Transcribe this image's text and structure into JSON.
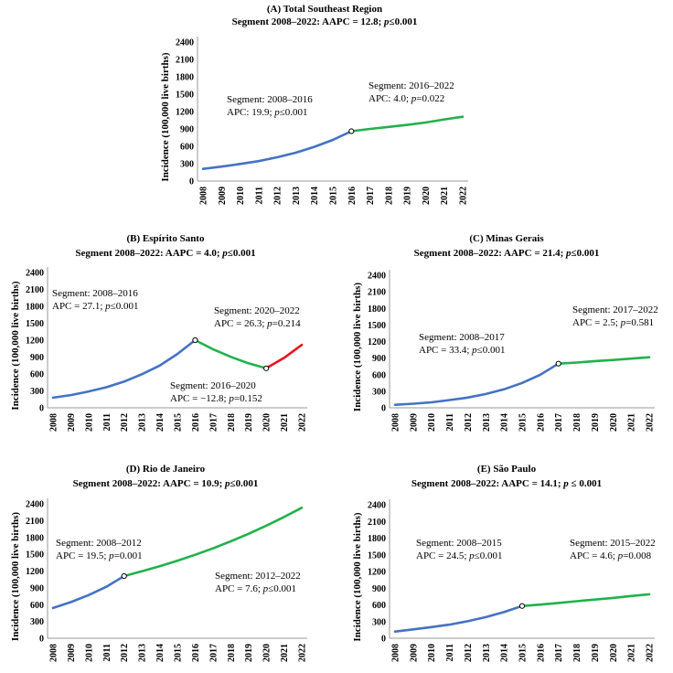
{
  "chart_data": [
    {
      "type": "line",
      "title": "(A) Total Southeast Region",
      "subtitle": "Segment 2008–2022: AAPC = 12.8; p≤0.001",
      "subtitle_parts": [
        "Segment 2008–2022: AAPC = 12.8; ",
        "p",
        "≤0.001"
      ],
      "ylabel": "Incidence (100,000 live births)",
      "ylim": [
        0,
        2400
      ],
      "yticks": [
        "0",
        "300",
        "600",
        "900",
        "1200",
        "1500",
        "1800",
        "2100",
        "2400"
      ],
      "x": [
        "2008",
        "2009",
        "2010",
        "2011",
        "2012",
        "2013",
        "2014",
        "2015",
        "2016",
        "2017",
        "2018",
        "2019",
        "2020",
        "2021",
        "2022"
      ],
      "series": [
        {
          "name": "2008–2016",
          "color": "#4472C4",
          "x": [
            2008,
            2009,
            2010,
            2011,
            2012,
            2013,
            2014,
            2015,
            2016
          ],
          "values": [
            210,
            250,
            295,
            345,
            410,
            490,
            590,
            710,
            860
          ]
        },
        {
          "name": "2016–2022",
          "color": "#22B14C",
          "x": [
            2016,
            2017,
            2018,
            2019,
            2020,
            2021,
            2022
          ],
          "values": [
            860,
            900,
            935,
            970,
            1010,
            1065,
            1110
          ]
        }
      ],
      "joinpoints": [
        {
          "x": 2016,
          "y": 860
        }
      ],
      "annotations": [
        {
          "line1": "Segment: 2008–2016",
          "line2_parts": [
            "APC: 19.9; ",
            "p",
            "≤0.001"
          ]
        },
        {
          "line1": "Segment: 2016–2022",
          "line2_parts": [
            "APC: 4.0; ",
            "p",
            "=0.022"
          ]
        }
      ]
    },
    {
      "type": "line",
      "title": "(B) Espírito Santo",
      "subtitle": "Segment 2008–2022: AAPC = 4.0; p≤0.001",
      "subtitle_parts": [
        "Segment 2008–2022: AAPC = 4.0; ",
        "p",
        "≤0.001"
      ],
      "ylabel": "Incidence (100,000 live births)",
      "ylim": [
        0,
        2400
      ],
      "yticks": [
        "0",
        "300",
        "600",
        "900",
        "1200",
        "1500",
        "1800",
        "2100",
        "2400"
      ],
      "x": [
        "2008",
        "2009",
        "2010",
        "2011",
        "2012",
        "2013",
        "2014",
        "2015",
        "2016",
        "2017",
        "2018",
        "2019",
        "2020",
        "2021",
        "2022"
      ],
      "series": [
        {
          "name": "2008–2016",
          "color": "#4472C4",
          "x": [
            2008,
            2009,
            2010,
            2011,
            2012,
            2013,
            2014,
            2015,
            2016
          ],
          "values": [
            180,
            225,
            290,
            365,
            465,
            595,
            750,
            955,
            1200
          ]
        },
        {
          "name": "2016–2020",
          "color": "#22B14C",
          "x": [
            2016,
            2017,
            2018,
            2019,
            2020
          ],
          "values": [
            1200,
            1040,
            905,
            790,
            700
          ]
        },
        {
          "name": "2020–2022",
          "color": "#E8141C",
          "x": [
            2020,
            2021,
            2022
          ],
          "values": [
            700,
            885,
            1115
          ]
        }
      ],
      "joinpoints": [
        {
          "x": 2016,
          "y": 1200
        },
        {
          "x": 2020,
          "y": 700
        }
      ],
      "annotations": [
        {
          "line1": "Segment: 2008–2016",
          "line2_parts": [
            "APC = 27.1; ",
            "p",
            "≤0.001"
          ]
        },
        {
          "line1": "Segment: 2020–2022",
          "line2_parts": [
            "APC = 26.3; ",
            "p",
            "=0.214"
          ]
        },
        {
          "line1": "Segment: 2016–2020",
          "line2_parts": [
            "APC = −12.8; ",
            "p",
            "=0.152"
          ]
        }
      ]
    },
    {
      "type": "line",
      "title": "(C) Minas Gerais",
      "subtitle": "Segment 2008–2022: AAPC = 21.4; p≤0.001",
      "subtitle_parts": [
        "Segment 2008–2022: AAPC = 21.4; ",
        "p",
        "≤0.001"
      ],
      "ylabel": "Incidence (100,000 live births)",
      "ylim": [
        0,
        2400
      ],
      "yticks": [
        "0",
        "300",
        "600",
        "900",
        "1200",
        "1500",
        "1800",
        "2100",
        "2400"
      ],
      "x": [
        "2008",
        "2009",
        "2010",
        "2011",
        "2012",
        "2013",
        "2014",
        "2015",
        "2016",
        "2017",
        "2018",
        "2019",
        "2020",
        "2021",
        "2022"
      ],
      "series": [
        {
          "name": "2008–2017",
          "color": "#4472C4",
          "x": [
            2008,
            2009,
            2010,
            2011,
            2012,
            2013,
            2014,
            2015,
            2016,
            2017
          ],
          "values": [
            55,
            75,
            100,
            140,
            185,
            250,
            335,
            450,
            600,
            800
          ]
        },
        {
          "name": "2017–2022",
          "color": "#22B14C",
          "x": [
            2017,
            2018,
            2019,
            2020,
            2021,
            2022
          ],
          "values": [
            800,
            820,
            845,
            865,
            890,
            915
          ]
        }
      ],
      "joinpoints": [
        {
          "x": 2017,
          "y": 800
        }
      ],
      "annotations": [
        {
          "line1": "Segment: 2017–2022",
          "line2_parts": [
            "APC = 2.5; ",
            "p",
            "=0.581"
          ]
        },
        {
          "line1": "Segment: 2008–2017",
          "line2_parts": [
            "APC = 33.4; ",
            "p",
            "≤0.001"
          ]
        }
      ]
    },
    {
      "type": "line",
      "title": "(D) Rio de Janeiro",
      "subtitle": "Segment 2008–2022: AAPC = 10.9; p≤0.001",
      "subtitle_parts": [
        "Segment 2008–2022: AAPC = 10.9; ",
        "p",
        "≤0.001"
      ],
      "ylabel": "Incidence (100,000 live births)",
      "ylim": [
        0,
        2400
      ],
      "yticks": [
        "0",
        "300",
        "600",
        "900",
        "1200",
        "1500",
        "1800",
        "2100",
        "2400"
      ],
      "x": [
        "2008",
        "2009",
        "2010",
        "2011",
        "2012",
        "2013",
        "2014",
        "2015",
        "2016",
        "2017",
        "2018",
        "2019",
        "2020",
        "2021",
        "2022"
      ],
      "series": [
        {
          "name": "2008–2012",
          "color": "#4472C4",
          "x": [
            2008,
            2009,
            2010,
            2011,
            2012
          ],
          "values": [
            540,
            645,
            770,
            920,
            1110
          ]
        },
        {
          "name": "2012–2022",
          "color": "#22B14C",
          "x": [
            2012,
            2013,
            2014,
            2015,
            2016,
            2017,
            2018,
            2019,
            2020,
            2021,
            2022
          ],
          "values": [
            1110,
            1195,
            1285,
            1385,
            1490,
            1605,
            1730,
            1865,
            2010,
            2165,
            2330
          ]
        }
      ],
      "joinpoints": [
        {
          "x": 2012,
          "y": 1110
        }
      ],
      "annotations": [
        {
          "line1": "Segment: 2008–2012",
          "line2_parts": [
            "APC = 19.5; ",
            "p",
            "=0.001"
          ]
        },
        {
          "line1": "Segment: 2012–2022",
          "line2_parts": [
            "APC = 7.6; ",
            "p",
            "≤0.001"
          ]
        }
      ]
    },
    {
      "type": "line",
      "title": "(E) São Paulo",
      "subtitle": "Segment 2008–2022: AAPC = 14.1; p ≤ 0.001",
      "subtitle_parts": [
        "Segment 2008–2022: AAPC = 14.1; ",
        "p",
        " ≤ 0.001"
      ],
      "ylabel": "Incidence (100,000 live births)",
      "ylim": [
        0,
        2400
      ],
      "yticks": [
        "0",
        "300",
        "600",
        "900",
        "1200",
        "1500",
        "1800",
        "2100",
        "2400"
      ],
      "x": [
        "2008",
        "2009",
        "2010",
        "2011",
        "2012",
        "2013",
        "2014",
        "2015",
        "2016",
        "2017",
        "2018",
        "2019",
        "2020",
        "2021",
        "2022"
      ],
      "series": [
        {
          "name": "2008–2015",
          "color": "#4472C4",
          "x": [
            2008,
            2009,
            2010,
            2011,
            2012,
            2013,
            2014,
            2015
          ],
          "values": [
            120,
            160,
            200,
            245,
            305,
            380,
            470,
            580
          ]
        },
        {
          "name": "2015–2022",
          "color": "#22B14C",
          "x": [
            2015,
            2016,
            2017,
            2018,
            2019,
            2020,
            2021,
            2022
          ],
          "values": [
            580,
            605,
            635,
            665,
            695,
            725,
            760,
            790
          ]
        }
      ],
      "joinpoints": [
        {
          "x": 2015,
          "y": 580
        }
      ],
      "annotations": [
        {
          "line1": "Segment: 2008–2015",
          "line2_parts": [
            "APC = 24.5; ",
            "p",
            "≤0.001"
          ]
        },
        {
          "line1": "Segment: 2015–2022",
          "line2_parts": [
            "APC = 4.6; ",
            "p",
            "=0.008"
          ]
        }
      ]
    }
  ]
}
